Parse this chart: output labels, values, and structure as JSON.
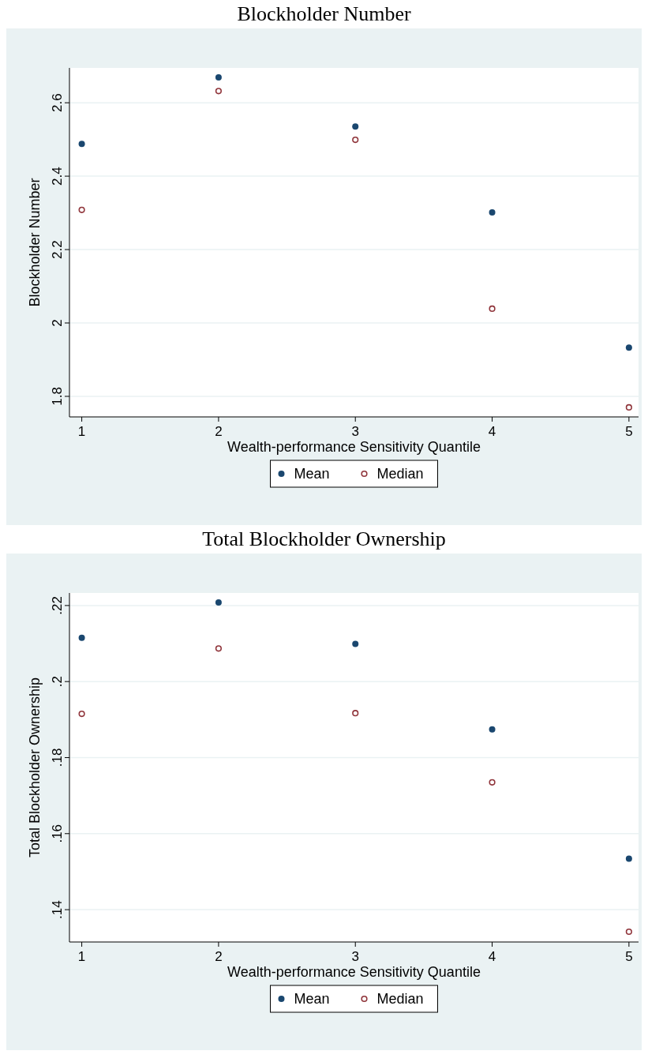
{
  "chart_data": [
    {
      "type": "scatter",
      "title": "Blockholder Number",
      "xlabel": "Wealth-performance Sensitivity Quantile",
      "ylabel": "Blockholder Number",
      "x": [
        1,
        2,
        3,
        4,
        5
      ],
      "xlim": [
        0.91,
        5.07
      ],
      "xticks": [
        1,
        2,
        3,
        4,
        5
      ],
      "ylim": [
        1.744,
        2.695
      ],
      "yticks": [
        1.8,
        2,
        2.2,
        2.4,
        2.6
      ],
      "grid": "y",
      "legend": "bottom",
      "marker": "circle",
      "series": [
        {
          "name": "Mean",
          "color": "#1a476f",
          "values": [
            2.488,
            2.669,
            2.535,
            2.301,
            1.933
          ]
        },
        {
          "name": "Median",
          "color": "#90353b",
          "values": [
            2.308,
            2.632,
            2.499,
            2.039,
            1.77
          ]
        }
      ]
    },
    {
      "type": "scatter",
      "title": "Total Blockholder Ownership",
      "xlabel": "Wealth-performance Sensitivity Quantile",
      "ylabel": "Total Blockholder Ownership",
      "x": [
        1,
        2,
        3,
        4,
        5
      ],
      "xlim": [
        0.91,
        5.07
      ],
      "xticks": [
        1,
        2,
        3,
        4,
        5
      ],
      "ylim": [
        0.1315,
        0.2233
      ],
      "yticks": [
        {
          "value": 0.14,
          "label": ".14"
        },
        {
          "value": 0.16,
          "label": ".16"
        },
        {
          "value": 0.18,
          "label": ".18"
        },
        {
          "value": 0.2,
          "label": ".2"
        },
        {
          "value": 0.22,
          "label": ".22"
        }
      ],
      "grid": "y",
      "legend": "bottom",
      "marker": "circle",
      "series": [
        {
          "name": "Mean",
          "color": "#1a476f",
          "values": [
            0.2115,
            0.2208,
            0.2099,
            0.1874,
            0.1534
          ]
        },
        {
          "name": "Median",
          "color": "#90353b",
          "values": [
            0.1915,
            0.2087,
            0.1917,
            0.1735,
            0.1342
          ]
        }
      ]
    }
  ]
}
